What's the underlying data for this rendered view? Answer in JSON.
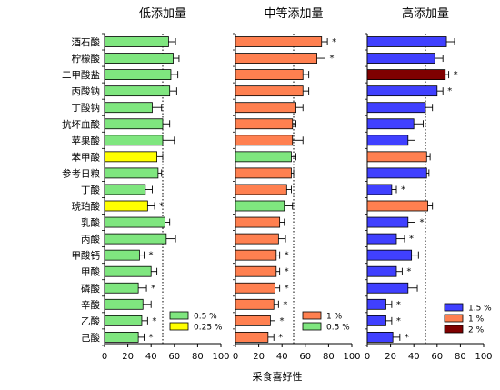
{
  "chart_data": {
    "type": "bar",
    "orientation": "horizontal",
    "categories": [
      "酒石酸",
      "柠檬酸",
      "二甲酸盐",
      "丙酸钠",
      "丁酸钠",
      "抗坏血酸",
      "苹果酸",
      "苯甲酸",
      "参考日粮",
      "丁酸",
      "琥珀酸",
      "乳酸",
      "丙酸",
      "甲酸钙",
      "甲酸",
      "磷酸",
      "辛酸",
      "乙酸",
      "己酸"
    ],
    "xlabel": "采食喜好性",
    "xlim": [
      0,
      100
    ],
    "xticks": [
      "0",
      "20",
      "40",
      "60",
      "80",
      "100"
    ],
    "reference_line": 50,
    "panels": [
      {
        "title": "低添加量",
        "values": [
          55,
          59,
          57,
          56,
          41,
          50,
          50,
          45,
          46,
          35,
          37,
          52,
          53,
          30,
          40,
          29,
          33,
          32,
          29
        ],
        "errors": [
          6,
          5,
          6,
          6,
          8,
          6,
          10,
          5,
          3,
          6,
          6,
          4,
          8,
          4,
          5,
          7,
          7,
          5,
          5
        ],
        "dose_level": [
          "0.5 %",
          "0.5 %",
          "0.5 %",
          "0.5 %",
          "0.5 %",
          "0.5 %",
          "0.5 %",
          "0.25 %",
          "0.5 %",
          "0.5 %",
          "0.25 %",
          "0.5 %",
          "0.5 %",
          "0.5 %",
          "0.5 %",
          "0.5 %",
          "0.5 %",
          "0.5 %",
          "0.5 %"
        ],
        "significant": [
          false,
          false,
          false,
          false,
          false,
          false,
          false,
          false,
          false,
          false,
          true,
          false,
          false,
          true,
          false,
          true,
          false,
          true,
          true
        ],
        "legend": [
          {
            "label": "0.5 %",
            "color": "#7fe67f"
          },
          {
            "label": "0.25 %",
            "color": "#ffff00"
          }
        ]
      },
      {
        "title": "中等添加量",
        "values": [
          74,
          70,
          58,
          58,
          52,
          49,
          49,
          48,
          48,
          44,
          42,
          38,
          37,
          35,
          35,
          34,
          33,
          30,
          28
        ],
        "errors": [
          5,
          7,
          5,
          5,
          6,
          3,
          9,
          4,
          2,
          4,
          7,
          4,
          6,
          3,
          3,
          4,
          4,
          4,
          5
        ],
        "dose_level": [
          "1 %",
          "1 %",
          "1 %",
          "1 %",
          "1 %",
          "1 %",
          "1 %",
          "0.5 %",
          "1 %",
          "1 %",
          "0.5 %",
          "1 %",
          "1 %",
          "1 %",
          "1 %",
          "1 %",
          "1 %",
          "1 %",
          "1 %"
        ],
        "significant": [
          true,
          true,
          false,
          false,
          false,
          false,
          false,
          false,
          false,
          false,
          false,
          false,
          false,
          true,
          true,
          true,
          true,
          true,
          true
        ],
        "legend": [
          {
            "label": "1 %",
            "color": "#ff8050"
          },
          {
            "label": "0.5 %",
            "color": "#7fe67f"
          }
        ]
      },
      {
        "title": "高添加量",
        "values": [
          68,
          58,
          67,
          60,
          50,
          40,
          35,
          51,
          51,
          21,
          52,
          35,
          25,
          38,
          25,
          35,
          16,
          16,
          22
        ],
        "errors": [
          7,
          7,
          3,
          5,
          6,
          8,
          6,
          3,
          2,
          4,
          4,
          6,
          7,
          6,
          5,
          8,
          5,
          5,
          6
        ],
        "dose_level": [
          "1.5 %",
          "1.5 %",
          "2 %",
          "1.5 %",
          "1.5 %",
          "1.5 %",
          "1.5 %",
          "1 %",
          "1.5 %",
          "1.5 %",
          "1 %",
          "1.5 %",
          "1.5 %",
          "1.5 %",
          "1.5 %",
          "1.5 %",
          "1.5 %",
          "1.5 %",
          "1.5 %"
        ],
        "significant": [
          false,
          false,
          true,
          true,
          false,
          false,
          false,
          false,
          false,
          true,
          false,
          true,
          true,
          false,
          true,
          false,
          true,
          true,
          true
        ],
        "legend": [
          {
            "label": "1.5 %",
            "color": "#4040ff"
          },
          {
            "label": "1 %",
            "color": "#ff8050"
          },
          {
            "label": "2 %",
            "color": "#7f0000"
          }
        ]
      }
    ],
    "colors": {
      "0.25 %": "#ffff00",
      "0.5 %": "#7fe67f",
      "1 %": "#ff8050",
      "1.5 %": "#4040ff",
      "2 %": "#7f0000"
    },
    "significance_mark": "*"
  }
}
